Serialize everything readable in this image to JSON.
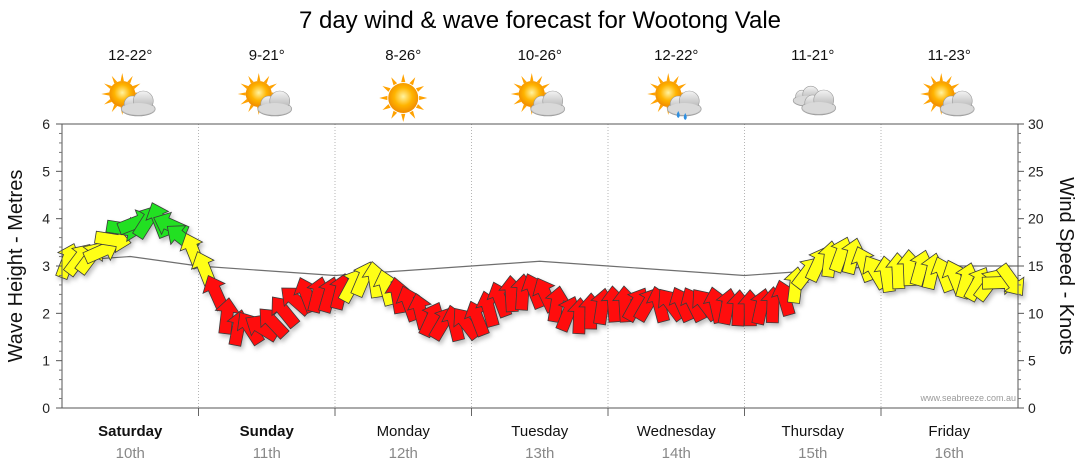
{
  "chart_data": {
    "type": "line",
    "title": "7 day wind & wave forecast for Wootong Vale",
    "ylabel_left": "Wave Height - Metres",
    "ylabel_right": "Wind Speed - Knots",
    "ylim_left": [
      0,
      6
    ],
    "ylim_right": [
      0,
      30
    ],
    "yticks_left": [
      "0",
      "1",
      "2",
      "3",
      "4",
      "5",
      "6"
    ],
    "yticks_right": [
      "0",
      "5",
      "10",
      "15",
      "20",
      "25",
      "30"
    ],
    "credit": "www.seabreeze.com.au",
    "days": [
      {
        "name": "Saturday",
        "date": "10th",
        "temp": "12-22°",
        "icon": "partly-cloudy-icon",
        "bold": true
      },
      {
        "name": "Sunday",
        "date": "11th",
        "temp": "9-21°",
        "icon": "partly-cloudy-icon",
        "bold": true
      },
      {
        "name": "Monday",
        "date": "12th",
        "temp": "8-26°",
        "icon": "sunny-icon",
        "bold": false
      },
      {
        "name": "Tuesday",
        "date": "13th",
        "temp": "10-26°",
        "icon": "partly-cloudy-icon",
        "bold": false
      },
      {
        "name": "Wednesday",
        "date": "14th",
        "temp": "12-22°",
        "icon": "showers-icon",
        "bold": false
      },
      {
        "name": "Thursday",
        "date": "15th",
        "temp": "11-21°",
        "icon": "cloudy-icon",
        "bold": false
      },
      {
        "name": "Friday",
        "date": "16th",
        "temp": "11-23°",
        "icon": "partly-cloudy-icon",
        "bold": false
      }
    ],
    "wind_series": {
      "name": "Wind Speed (knots)",
      "t_days": [
        0.0,
        0.25,
        0.5,
        0.75,
        1.0,
        1.25,
        1.5,
        1.75,
        2.0,
        2.25,
        2.5,
        2.75,
        3.0,
        3.25,
        3.5,
        3.75,
        4.0,
        4.25,
        4.5,
        4.75,
        5.0,
        5.25,
        5.5,
        5.75,
        6.0,
        6.25,
        6.5,
        6.75,
        7.0
      ],
      "values": [
        15.5,
        16,
        19.5,
        20,
        16,
        8.5,
        8.5,
        12,
        12,
        14,
        11.5,
        9,
        9,
        12,
        12.5,
        9.5,
        11,
        11,
        11,
        11,
        10.5,
        11,
        15,
        16.5,
        14,
        15,
        14,
        13,
        13.5
      ]
    },
    "wave_series": {
      "name": "Wave Height (m)",
      "t_days": [
        0.0,
        0.5,
        1.0,
        1.5,
        2.0,
        2.5,
        3.0,
        3.5,
        4.0,
        4.5,
        5.0,
        5.5,
        6.0,
        6.5,
        7.0
      ],
      "values": [
        3.1,
        3.2,
        3.0,
        2.9,
        2.8,
        2.9,
        3.0,
        3.1,
        3.0,
        2.9,
        2.8,
        2.9,
        3.0,
        3.0,
        3.0
      ]
    }
  }
}
